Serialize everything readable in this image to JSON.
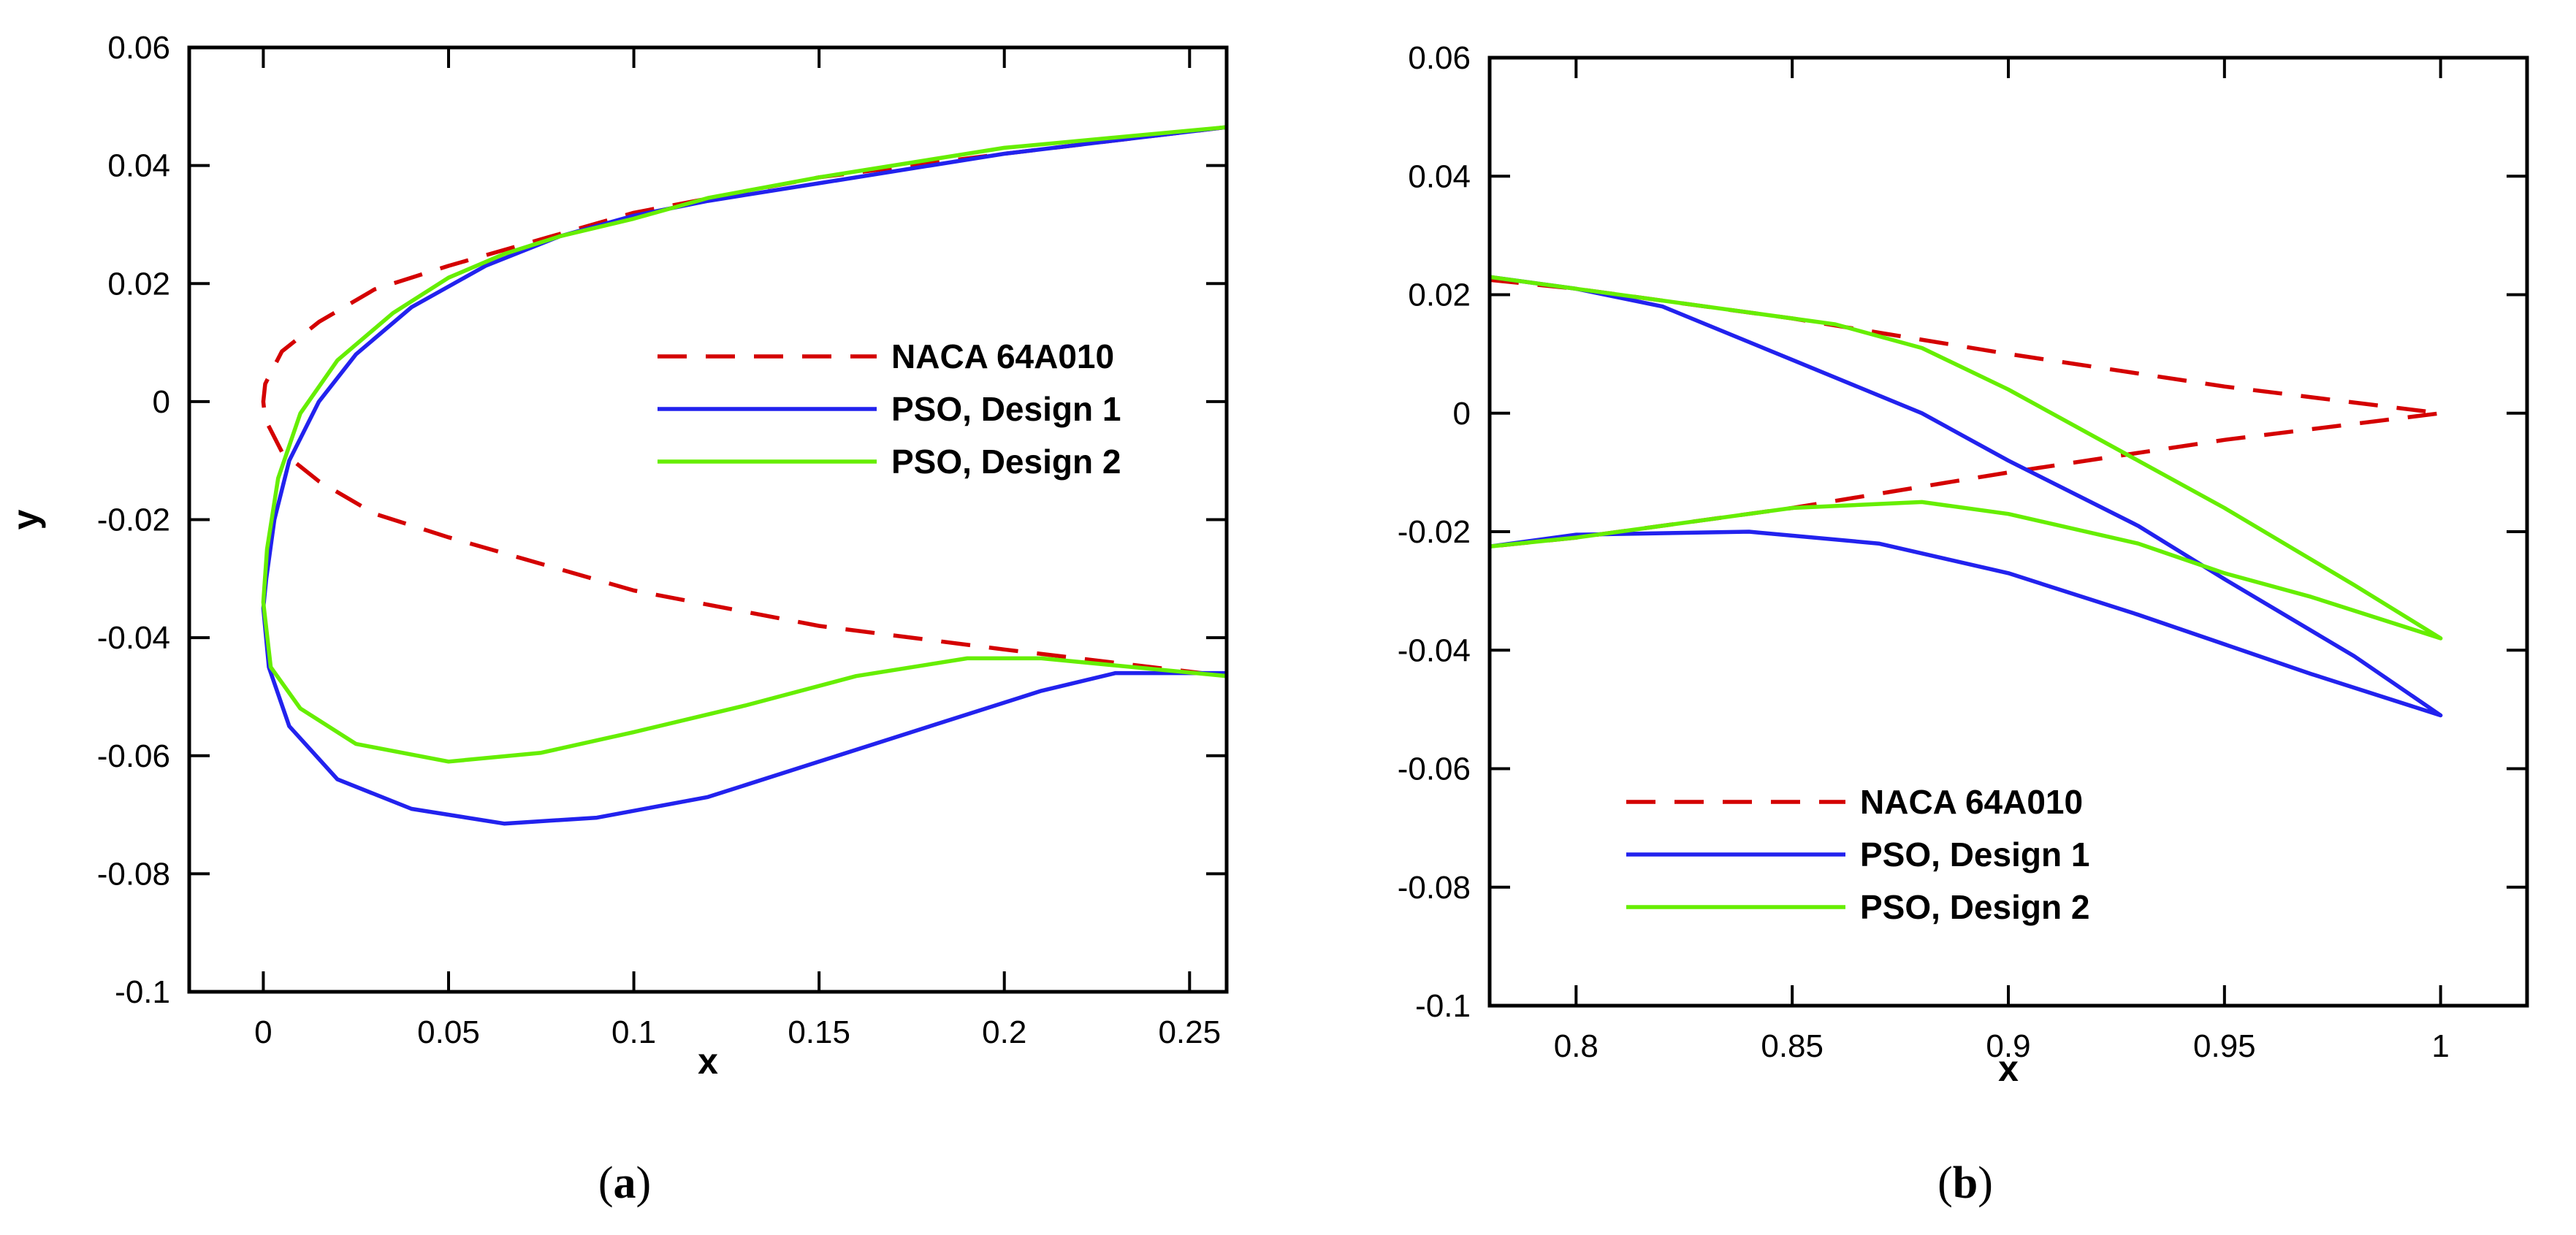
{
  "chart_data": [
    {
      "type": "line",
      "panel_label": "a",
      "xlabel": "x",
      "ylabel": "y",
      "xlim": [
        -0.02,
        0.26
      ],
      "ylim": [
        -0.1,
        0.06
      ],
      "xticks": [
        0,
        0.05,
        0.1,
        0.15,
        0.2,
        0.25
      ],
      "xtick_labels": [
        "0",
        "0.05",
        "0.1",
        "0.15",
        "0.2",
        "0.25"
      ],
      "yticks": [
        -0.1,
        -0.08,
        -0.06,
        -0.04,
        -0.02,
        0,
        0.02,
        0.04,
        0.06
      ],
      "ytick_labels": [
        "-0.1",
        "-0.08",
        "-0.06",
        "-0.04",
        "-0.02",
        "0",
        "0.02",
        "0.04",
        "0.06"
      ],
      "legend_position": "center-right",
      "series": [
        {
          "name": "NACA 64A010",
          "color": "#d40000",
          "dash": "dashed",
          "points": [
            [
              0.26,
              0.0465
            ],
            [
              0.2,
              0.042
            ],
            [
              0.15,
              0.038
            ],
            [
              0.1,
              0.032
            ],
            [
              0.05,
              0.023
            ],
            [
              0.03,
              0.019
            ],
            [
              0.015,
              0.0135
            ],
            [
              0.005,
              0.0085
            ],
            [
              0.0005,
              0.003
            ],
            [
              0.0,
              0.0
            ],
            [
              0.0005,
              -0.003
            ],
            [
              0.005,
              -0.0085
            ],
            [
              0.015,
              -0.0135
            ],
            [
              0.03,
              -0.019
            ],
            [
              0.05,
              -0.023
            ],
            [
              0.1,
              -0.032
            ],
            [
              0.15,
              -0.038
            ],
            [
              0.2,
              -0.042
            ],
            [
              0.26,
              -0.0465
            ]
          ]
        },
        {
          "name": "PSO, Design 1",
          "color": "#2222ee",
          "dash": "solid",
          "points": [
            [
              0.26,
              0.0465
            ],
            [
              0.2,
              0.042
            ],
            [
              0.15,
              0.037
            ],
            [
              0.12,
              0.034
            ],
            [
              0.1,
              0.0315
            ],
            [
              0.08,
              0.028
            ],
            [
              0.06,
              0.023
            ],
            [
              0.04,
              0.016
            ],
            [
              0.025,
              0.008
            ],
            [
              0.015,
              0.0
            ],
            [
              0.007,
              -0.01
            ],
            [
              0.003,
              -0.02
            ],
            [
              0.0008,
              -0.03
            ],
            [
              0.0,
              -0.035
            ],
            [
              0.0015,
              -0.045
            ],
            [
              0.007,
              -0.055
            ],
            [
              0.02,
              -0.064
            ],
            [
              0.04,
              -0.069
            ],
            [
              0.065,
              -0.0715
            ],
            [
              0.09,
              -0.0705
            ],
            [
              0.12,
              -0.067
            ],
            [
              0.15,
              -0.061
            ],
            [
              0.18,
              -0.055
            ],
            [
              0.21,
              -0.049
            ],
            [
              0.23,
              -0.046
            ],
            [
              0.26,
              -0.046
            ]
          ]
        },
        {
          "name": "PSO, Design 2",
          "color": "#66ee00",
          "dash": "solid",
          "points": [
            [
              0.26,
              0.0465
            ],
            [
              0.2,
              0.043
            ],
            [
              0.15,
              0.038
            ],
            [
              0.12,
              0.0345
            ],
            [
              0.1,
              0.031
            ],
            [
              0.08,
              0.028
            ],
            [
              0.065,
              0.025
            ],
            [
              0.05,
              0.021
            ],
            [
              0.035,
              0.015
            ],
            [
              0.02,
              0.007
            ],
            [
              0.01,
              -0.002
            ],
            [
              0.004,
              -0.013
            ],
            [
              0.001,
              -0.025
            ],
            [
              0.0,
              -0.034
            ],
            [
              0.002,
              -0.045
            ],
            [
              0.01,
              -0.052
            ],
            [
              0.025,
              -0.058
            ],
            [
              0.05,
              -0.061
            ],
            [
              0.075,
              -0.0595
            ],
            [
              0.1,
              -0.056
            ],
            [
              0.13,
              -0.0515
            ],
            [
              0.16,
              -0.0465
            ],
            [
              0.19,
              -0.0435
            ],
            [
              0.21,
              -0.0435
            ],
            [
              0.26,
              -0.0465
            ]
          ]
        }
      ]
    },
    {
      "type": "line",
      "panel_label": "b",
      "xlabel": "x",
      "ylabel": "",
      "xlim": [
        0.78,
        1.02
      ],
      "ylim": [
        -0.1,
        0.06
      ],
      "xticks": [
        0.8,
        0.85,
        0.9,
        0.95,
        1
      ],
      "xtick_labels": [
        "0.8",
        "0.85",
        "0.9",
        "0.95",
        "1"
      ],
      "yticks": [
        -0.1,
        -0.08,
        -0.06,
        -0.04,
        -0.02,
        0,
        0.02,
        0.04,
        0.06
      ],
      "ytick_labels": [
        "-0.1",
        "-0.08",
        "-0.06",
        "-0.04",
        "-0.02",
        "0",
        "0.02",
        "0.04",
        "0.06"
      ],
      "legend_position": "bottom-center",
      "series": [
        {
          "name": "NACA 64A010",
          "color": "#d40000",
          "dash": "dashed",
          "points": [
            [
              0.78,
              0.0225
            ],
            [
              0.8,
              0.021
            ],
            [
              0.85,
              0.016
            ],
            [
              0.9,
              0.01
            ],
            [
              0.95,
              0.0045
            ],
            [
              1.0,
              0.0
            ],
            [
              0.95,
              -0.0045
            ],
            [
              0.9,
              -0.01
            ],
            [
              0.85,
              -0.016
            ],
            [
              0.8,
              -0.021
            ],
            [
              0.78,
              -0.0225
            ]
          ]
        },
        {
          "name": "PSO, Design 1",
          "color": "#2222ee",
          "dash": "solid",
          "points": [
            [
              0.78,
              0.023
            ],
            [
              0.8,
              0.021
            ],
            [
              0.82,
              0.018
            ],
            [
              0.85,
              0.009
            ],
            [
              0.88,
              0.0
            ],
            [
              0.9,
              -0.008
            ],
            [
              0.93,
              -0.019
            ],
            [
              0.95,
              -0.028
            ],
            [
              0.98,
              -0.041
            ],
            [
              1.0,
              -0.051
            ],
            [
              0.97,
              -0.044
            ],
            [
              0.93,
              -0.034
            ],
            [
              0.9,
              -0.027
            ],
            [
              0.87,
              -0.022
            ],
            [
              0.84,
              -0.02
            ],
            [
              0.8,
              -0.0205
            ],
            [
              0.78,
              -0.0225
            ]
          ]
        },
        {
          "name": "PSO, Design 2",
          "color": "#66ee00",
          "dash": "solid",
          "points": [
            [
              0.78,
              0.023
            ],
            [
              0.8,
              0.021
            ],
            [
              0.83,
              0.018
            ],
            [
              0.86,
              0.015
            ],
            [
              0.88,
              0.011
            ],
            [
              0.9,
              0.004
            ],
            [
              0.92,
              -0.004
            ],
            [
              0.95,
              -0.016
            ],
            [
              0.98,
              -0.029
            ],
            [
              1.0,
              -0.038
            ],
            [
              0.97,
              -0.031
            ],
            [
              0.95,
              -0.027
            ],
            [
              0.93,
              -0.022
            ],
            [
              0.9,
              -0.017
            ],
            [
              0.88,
              -0.015
            ],
            [
              0.85,
              -0.016
            ],
            [
              0.82,
              -0.019
            ],
            [
              0.8,
              -0.021
            ],
            [
              0.78,
              -0.0225
            ]
          ]
        }
      ]
    }
  ]
}
